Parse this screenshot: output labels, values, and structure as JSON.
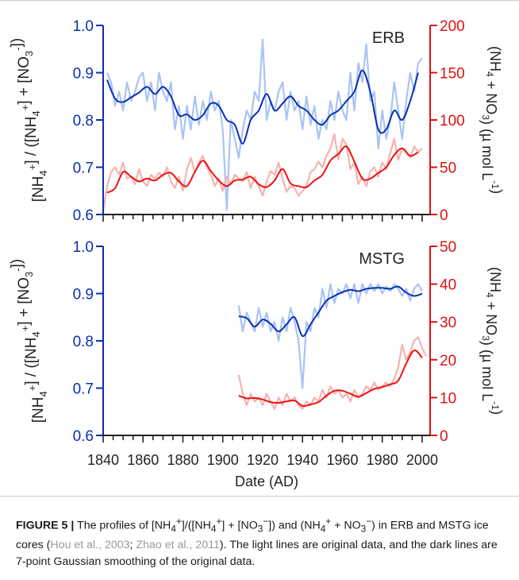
{
  "colors": {
    "blue_dark": "#0a2fb4",
    "blue_light": "#a9c4f2",
    "red_dark": "#ee1111",
    "red_light": "#f6b2b2",
    "axis_blue": "#0a2fb4",
    "axis_red": "#e01010",
    "text": "#222222"
  },
  "chart_data": [
    {
      "type": "line",
      "panel": "ERB",
      "xlim": [
        1840,
        2004
      ],
      "ylim_left": [
        0.6,
        1.0
      ],
      "ylim_right": [
        0,
        200
      ],
      "left_ticks": [
        "0.6",
        "0.7",
        "0.8",
        "0.9",
        "1.0"
      ],
      "right_ticks": [
        "0",
        "50",
        "100",
        "150",
        "200"
      ],
      "label": "ERB",
      "ylabel_left": "[NH4+] / ([NH4+] + [NO3-])",
      "ylabel_right": "(NH4 + NO3) (µ mol L-1)",
      "ratio_smooth": {
        "x": [
          1842,
          1846,
          1850,
          1854,
          1858,
          1862,
          1866,
          1870,
          1874,
          1878,
          1882,
          1886,
          1890,
          1894,
          1898,
          1902,
          1906,
          1910,
          1914,
          1918,
          1922,
          1926,
          1930,
          1934,
          1938,
          1942,
          1946,
          1950,
          1954,
          1958,
          1962,
          1966,
          1970,
          1974,
          1978,
          1982,
          1986,
          1990,
          1994,
          1998
        ],
        "y": [
          0.885,
          0.845,
          0.838,
          0.848,
          0.858,
          0.87,
          0.855,
          0.87,
          0.85,
          0.81,
          0.812,
          0.8,
          0.81,
          0.835,
          0.83,
          0.8,
          0.79,
          0.75,
          0.8,
          0.82,
          0.855,
          0.82,
          0.835,
          0.85,
          0.83,
          0.82,
          0.8,
          0.79,
          0.81,
          0.82,
          0.84,
          0.86,
          0.905,
          0.86,
          0.78,
          0.78,
          0.82,
          0.8,
          0.84,
          0.9
        ]
      },
      "ratio_raw": {
        "x": [
          1842,
          1844,
          1846,
          1848,
          1850,
          1852,
          1854,
          1856,
          1858,
          1860,
          1862,
          1864,
          1866,
          1868,
          1870,
          1872,
          1874,
          1876,
          1878,
          1880,
          1882,
          1884,
          1886,
          1888,
          1890,
          1892,
          1894,
          1896,
          1898,
          1900,
          1902,
          1904,
          1906,
          1908,
          1910,
          1912,
          1914,
          1916,
          1918,
          1920,
          1922,
          1924,
          1926,
          1928,
          1930,
          1932,
          1934,
          1936,
          1938,
          1940,
          1942,
          1944,
          1946,
          1948,
          1950,
          1952,
          1954,
          1956,
          1958,
          1960,
          1962,
          1964,
          1966,
          1968,
          1970,
          1972,
          1974,
          1976,
          1978,
          1980,
          1982,
          1984,
          1986,
          1988,
          1990,
          1992,
          1994,
          1996,
          1998,
          2000
        ],
        "y": [
          0.9,
          0.88,
          0.83,
          0.86,
          0.82,
          0.88,
          0.84,
          0.86,
          0.89,
          0.9,
          0.84,
          0.88,
          0.82,
          0.9,
          0.86,
          0.84,
          0.88,
          0.78,
          0.83,
          0.76,
          0.83,
          0.78,
          0.85,
          0.79,
          0.84,
          0.8,
          0.86,
          0.82,
          0.84,
          0.78,
          0.61,
          0.8,
          0.76,
          0.72,
          0.78,
          0.82,
          0.8,
          0.86,
          0.84,
          0.97,
          0.8,
          0.84,
          0.82,
          0.86,
          0.88,
          0.8,
          0.86,
          0.82,
          0.84,
          0.78,
          0.85,
          0.79,
          0.83,
          0.76,
          0.8,
          0.78,
          0.84,
          0.8,
          0.86,
          0.82,
          0.8,
          0.9,
          0.82,
          0.92,
          0.88,
          0.96,
          0.84,
          0.86,
          0.74,
          0.82,
          0.76,
          0.8,
          0.88,
          0.82,
          0.76,
          0.84,
          0.9,
          0.86,
          0.92,
          0.93
        ]
      },
      "sum_smooth": {
        "x": [
          1842,
          1846,
          1850,
          1854,
          1858,
          1862,
          1866,
          1870,
          1874,
          1878,
          1882,
          1886,
          1890,
          1894,
          1898,
          1902,
          1906,
          1910,
          1914,
          1918,
          1922,
          1926,
          1930,
          1934,
          1938,
          1942,
          1946,
          1950,
          1954,
          1958,
          1962,
          1966,
          1970,
          1974,
          1978,
          1982,
          1986,
          1990,
          1994,
          1998
        ],
        "y": [
          23,
          28,
          45,
          40,
          35,
          38,
          36,
          42,
          44,
          35,
          30,
          45,
          57,
          46,
          36,
          30,
          36,
          37,
          40,
          32,
          29,
          36,
          48,
          33,
          30,
          29,
          36,
          42,
          57,
          64,
          72,
          56,
          38,
          38,
          44,
          50,
          63,
          70,
          62,
          66
        ]
      },
      "sum_raw": {
        "x": [
          1840,
          1842,
          1844,
          1846,
          1848,
          1850,
          1852,
          1854,
          1856,
          1858,
          1860,
          1862,
          1864,
          1866,
          1868,
          1870,
          1872,
          1874,
          1876,
          1878,
          1880,
          1882,
          1884,
          1886,
          1888,
          1890,
          1892,
          1894,
          1896,
          1898,
          1900,
          1902,
          1904,
          1906,
          1908,
          1910,
          1912,
          1914,
          1916,
          1918,
          1920,
          1922,
          1924,
          1926,
          1928,
          1930,
          1932,
          1934,
          1936,
          1938,
          1940,
          1942,
          1944,
          1946,
          1948,
          1950,
          1952,
          1954,
          1956,
          1958,
          1960,
          1962,
          1964,
          1966,
          1968,
          1970,
          1972,
          1974,
          1976,
          1978,
          1980,
          1982,
          1984,
          1986,
          1988,
          1990,
          1992,
          1994,
          1996,
          1998,
          2000
        ],
        "y": [
          3,
          30,
          45,
          50,
          42,
          55,
          38,
          40,
          32,
          48,
          35,
          30,
          42,
          38,
          44,
          40,
          50,
          35,
          28,
          40,
          25,
          48,
          60,
          45,
          55,
          62,
          50,
          42,
          30,
          38,
          25,
          40,
          32,
          42,
          38,
          35,
          45,
          28,
          40,
          30,
          20,
          35,
          46,
          42,
          55,
          38,
          24,
          30,
          28,
          20,
          25,
          30,
          45,
          48,
          56,
          50,
          62,
          70,
          85,
          58,
          80,
          74,
          48,
          55,
          32,
          40,
          30,
          46,
          50,
          40,
          55,
          48,
          65,
          80,
          58,
          70,
          66,
          60,
          72,
          66,
          70
        ]
      }
    },
    {
      "type": "line",
      "panel": "MSTG",
      "xlim": [
        1840,
        2004
      ],
      "ylim_left": [
        0.6,
        1.0
      ],
      "ylim_right": [
        0,
        50
      ],
      "left_ticks": [
        "0.6",
        "0.7",
        "0.8",
        "0.9",
        "1.0"
      ],
      "right_ticks": [
        "0",
        "10",
        "20",
        "30",
        "40",
        "50"
      ],
      "x_ticks": [
        "1840",
        "1860",
        "1880",
        "1900",
        "1920",
        "1940",
        "1960",
        "1980",
        "2000"
      ],
      "xlabel": "Date (AD)",
      "label": "MSTG",
      "ylabel_left": "[NH4+] / ([NH4+] + [NO3-])",
      "ylabel_right": "(NH4 + NO3) (µ mol L-1)",
      "ratio_smooth": {
        "x": [
          1908,
          1912,
          1916,
          1920,
          1924,
          1928,
          1932,
          1936,
          1940,
          1944,
          1948,
          1952,
          1956,
          1960,
          1964,
          1968,
          1972,
          1976,
          1980,
          1984,
          1988,
          1992,
          1996,
          2000
        ],
        "y": [
          0.852,
          0.848,
          0.83,
          0.845,
          0.836,
          0.82,
          0.835,
          0.85,
          0.81,
          0.835,
          0.86,
          0.885,
          0.895,
          0.903,
          0.908,
          0.905,
          0.91,
          0.912,
          0.912,
          0.91,
          0.915,
          0.902,
          0.895,
          0.9
        ]
      },
      "ratio_raw": {
        "x": [
          1908,
          1910,
          1912,
          1914,
          1916,
          1918,
          1920,
          1922,
          1924,
          1926,
          1928,
          1930,
          1932,
          1934,
          1936,
          1938,
          1940,
          1942,
          1944,
          1946,
          1948,
          1950,
          1952,
          1954,
          1956,
          1958,
          1960,
          1962,
          1964,
          1966,
          1968,
          1970,
          1972,
          1974,
          1976,
          1978,
          1980,
          1982,
          1984,
          1986,
          1988,
          1990,
          1992,
          1994,
          1996,
          1998,
          2000
        ],
        "y": [
          0.875,
          0.82,
          0.86,
          0.84,
          0.82,
          0.87,
          0.83,
          0.86,
          0.82,
          0.84,
          0.8,
          0.85,
          0.82,
          0.87,
          0.84,
          0.8,
          0.7,
          0.84,
          0.82,
          0.87,
          0.85,
          0.91,
          0.87,
          0.92,
          0.88,
          0.91,
          0.9,
          0.92,
          0.89,
          0.92,
          0.88,
          0.92,
          0.9,
          0.92,
          0.905,
          0.92,
          0.9,
          0.915,
          0.905,
          0.92,
          0.91,
          0.895,
          0.91,
          0.885,
          0.91,
          0.92,
          0.905
        ]
      },
      "sum_smooth": {
        "x": [
          1908,
          1912,
          1916,
          1920,
          1924,
          1928,
          1932,
          1936,
          1940,
          1944,
          1948,
          1952,
          1956,
          1960,
          1964,
          1968,
          1972,
          1976,
          1980,
          1984,
          1988,
          1992,
          1996,
          2000
        ],
        "y": [
          10.5,
          9.8,
          9.9,
          9.5,
          8.8,
          8.6,
          9.0,
          9.2,
          7.8,
          8.2,
          8.8,
          10.5,
          11.8,
          11.8,
          11,
          10.2,
          11.2,
          12.3,
          12.8,
          13.5,
          14.5,
          19,
          22.5,
          20.5
        ]
      },
      "sum_raw": {
        "x": [
          1908,
          1910,
          1912,
          1914,
          1916,
          1918,
          1920,
          1922,
          1924,
          1926,
          1928,
          1930,
          1932,
          1934,
          1936,
          1938,
          1940,
          1942,
          1944,
          1946,
          1948,
          1950,
          1952,
          1954,
          1956,
          1958,
          1960,
          1962,
          1964,
          1966,
          1968,
          1970,
          1972,
          1974,
          1976,
          1978,
          1980,
          1982,
          1984,
          1986,
          1988,
          1990,
          1992,
          1994,
          1996,
          1998,
          2000,
          2002
        ],
        "y": [
          16,
          11,
          8,
          11,
          9,
          10,
          8,
          11,
          9,
          7,
          10,
          8,
          11,
          9,
          10,
          8,
          7,
          9,
          8,
          10,
          9,
          12,
          10,
          13,
          11,
          12,
          10,
          11,
          9,
          12,
          10,
          11,
          13,
          12,
          14,
          12,
          13,
          14,
          13,
          15,
          18,
          24,
          20,
          22,
          25,
          26,
          23,
          21
        ]
      }
    }
  ],
  "caption": {
    "label": "FIGURE 5 |",
    "text_a": " The profiles of [NH",
    "text_b": "]/([NH",
    "text_c": "] + [NO",
    "text_d": "]) and (NH",
    "text_e": " + NO",
    "text_f": ") in ERB and MSTG ice cores (",
    "ref1": "Hou et al., 2003",
    "sep": "; ",
    "ref2": "Zhao et al., 2011",
    "text_g": "). The light lines are original data, and the dark lines are 7-point Gaussian smoothing of the original data.",
    "sup_plus": "+",
    "sup_minus": "−",
    "sub_three": "3",
    "sub_four": "4"
  }
}
